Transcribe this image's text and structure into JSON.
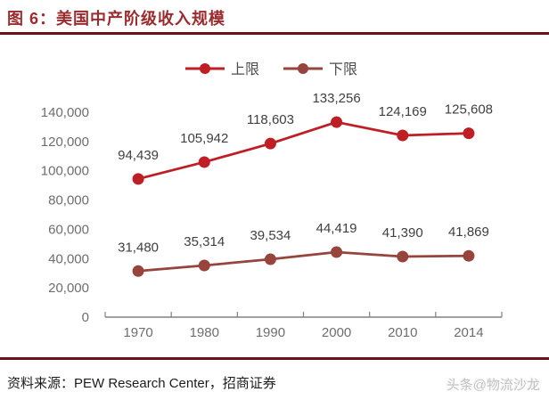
{
  "header": {
    "title": "图 6：美国中产阶级收入规模"
  },
  "footer": {
    "source": "资料来源：PEW Research Center，招商证券",
    "watermark": "头条@物流沙龙"
  },
  "colors": {
    "rule": "#6b1116",
    "title": "#9c2b2e",
    "series_upper": "#be1e24",
    "series_lower": "#96443c",
    "axis": "#808080",
    "tick_label": "#6e6e6e",
    "data_label": "#3f3f3f",
    "legend_label": "#4d4d4d"
  },
  "chart_data": {
    "type": "line",
    "title": "美国中产阶级收入规模",
    "categories": [
      "1970",
      "1980",
      "1990",
      "2000",
      "2010",
      "2014"
    ],
    "series": [
      {
        "name": "上限",
        "color_key": "series_upper",
        "values": [
          94439,
          105942,
          118603,
          133256,
          124169,
          125608
        ],
        "labels": [
          "94,439",
          "105,942",
          "118,603",
          "133,256",
          "124,169",
          "125,608"
        ]
      },
      {
        "name": "下限",
        "color_key": "series_lower",
        "values": [
          31480,
          35314,
          39534,
          44419,
          41390,
          41869
        ],
        "labels": [
          "31,480",
          "35,314",
          "39,534",
          "44,419",
          "41,390",
          "41,869"
        ]
      }
    ],
    "xlabel": "",
    "ylabel": "",
    "ylim": [
      0,
      140000
    ],
    "ytick_step": 20000,
    "ytick_labels": [
      "0",
      "20,000",
      "40,000",
      "60,000",
      "80,000",
      "100,000",
      "120,000",
      "140,000"
    ],
    "legend_position": "top",
    "grid": false
  }
}
